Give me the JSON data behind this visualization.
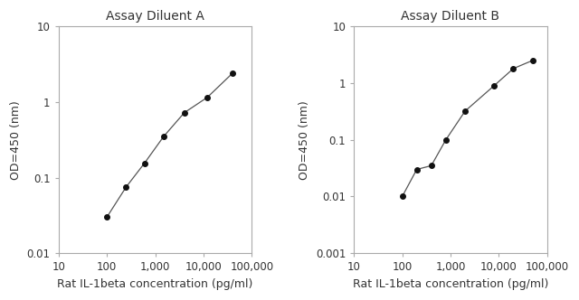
{
  "chart_a": {
    "title": "Assay Diluent A",
    "x": [
      100,
      250,
      600,
      1500,
      4000,
      12000,
      40000
    ],
    "y": [
      0.03,
      0.075,
      0.155,
      0.35,
      0.72,
      1.15,
      2.4
    ],
    "xlim": [
      10,
      100000
    ],
    "ylim": [
      0.01,
      10
    ],
    "xticks": [
      10,
      100,
      1000,
      10000,
      100000
    ],
    "xticklabels": [
      "10",
      "100",
      "1,000",
      "10,000",
      "100,000"
    ],
    "yticks": [
      0.01,
      0.1,
      1,
      10
    ],
    "yticklabels": [
      "0.01",
      "0.1",
      "1",
      "10"
    ]
  },
  "chart_b": {
    "title": "Assay Diluent B",
    "x": [
      100,
      200,
      400,
      800,
      2000,
      8000,
      20000,
      50000
    ],
    "y": [
      0.01,
      0.03,
      0.035,
      0.1,
      0.32,
      0.9,
      1.8,
      2.5
    ],
    "xlim": [
      10,
      100000
    ],
    "ylim": [
      0.001,
      10
    ],
    "xticks": [
      10,
      100,
      1000,
      10000,
      100000
    ],
    "xticklabels": [
      "10",
      "100",
      "1,000",
      "10,000",
      "100,000"
    ],
    "yticks": [
      0.001,
      0.01,
      0.1,
      1,
      10
    ],
    "yticklabels": [
      "0.001",
      "0.01",
      "0.1",
      "1",
      "10"
    ]
  },
  "xlabel": "Rat IL-1beta concentration (pg/ml)",
  "ylabel": "OD=450 (nm)",
  "line_color": "#555555",
  "marker_color": "#111111",
  "text_color": "#333333",
  "title_fontsize": 10,
  "label_fontsize": 9,
  "tick_fontsize": 8.5,
  "background_color": "#ffffff"
}
